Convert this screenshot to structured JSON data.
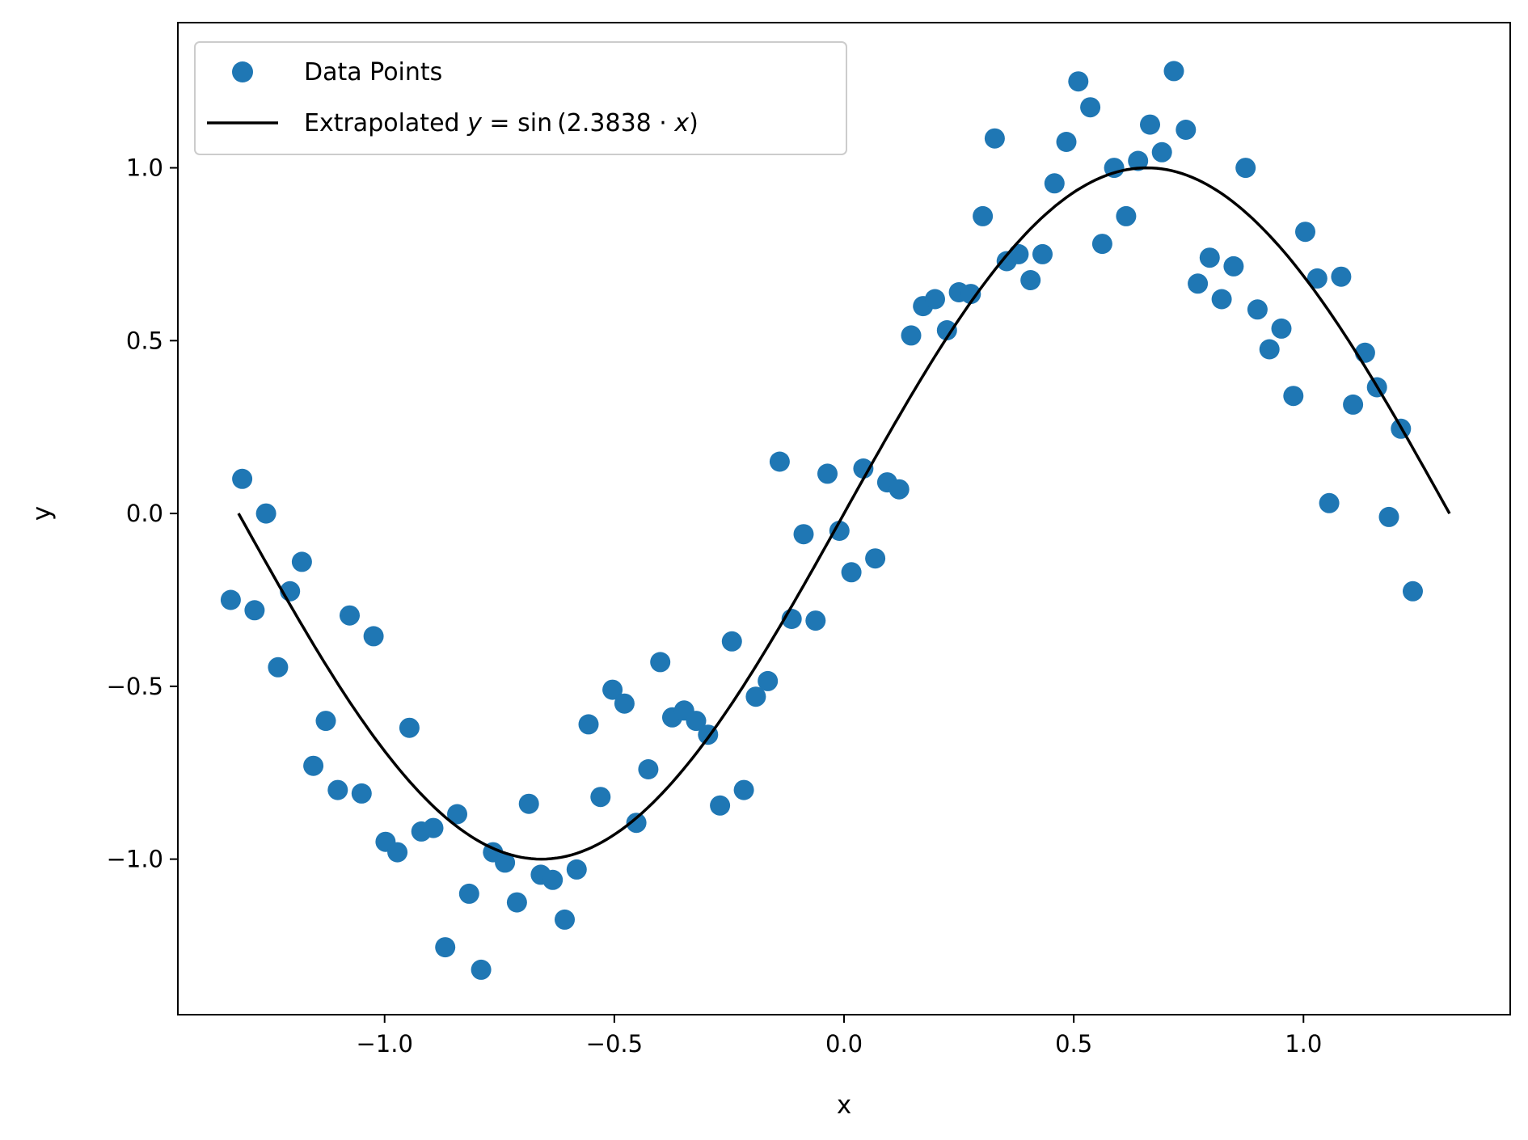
{
  "chart_data": {
    "type": "scatter",
    "xlabel": "x",
    "ylabel": "y",
    "xlim": [
      -1.45,
      1.45
    ],
    "ylim": [
      -1.45,
      1.42
    ],
    "xticks": [
      -1.0,
      -0.5,
      0.0,
      0.5,
      1.0
    ],
    "xtick_labels": [
      "−1.0",
      "−0.5",
      "0.0",
      "0.5",
      "1.0"
    ],
    "yticks": [
      -1.0,
      -0.5,
      0.0,
      0.5,
      1.0
    ],
    "ytick_labels": [
      "−1.0",
      "−0.5",
      "0.0",
      "0.5",
      "1.0"
    ],
    "grid": false,
    "legend_position": "top-left",
    "series": [
      {
        "name": "Data Points",
        "kind": "scatter",
        "color": "#1f77b4",
        "points": [
          [
            -1.335,
            -0.25
          ],
          [
            -1.31,
            0.1
          ],
          [
            -1.283,
            -0.28
          ],
          [
            -1.258,
            0.0
          ],
          [
            -1.232,
            -0.445
          ],
          [
            -1.206,
            -0.225
          ],
          [
            -1.18,
            -0.14
          ],
          [
            -1.155,
            -0.73
          ],
          [
            -1.128,
            -0.6
          ],
          [
            -1.102,
            -0.8
          ],
          [
            -1.076,
            -0.295
          ],
          [
            -1.05,
            -0.81
          ],
          [
            -1.024,
            -0.355
          ],
          [
            -0.998,
            -0.95
          ],
          [
            -0.972,
            -0.98
          ],
          [
            -0.946,
            -0.62
          ],
          [
            -0.92,
            -0.92
          ],
          [
            -0.894,
            -0.91
          ],
          [
            -0.868,
            -1.255
          ],
          [
            -0.842,
            -0.87
          ],
          [
            -0.816,
            -1.1
          ],
          [
            -0.79,
            -1.32
          ],
          [
            -0.764,
            -0.98
          ],
          [
            -0.738,
            -1.01
          ],
          [
            -0.712,
            -1.125
          ],
          [
            -0.686,
            -0.84
          ],
          [
            -0.66,
            -1.045
          ],
          [
            -0.634,
            -1.06
          ],
          [
            -0.608,
            -1.175
          ],
          [
            -0.582,
            -1.03
          ],
          [
            -0.556,
            -0.61
          ],
          [
            -0.53,
            -0.82
          ],
          [
            -0.504,
            -0.51
          ],
          [
            -0.478,
            -0.55
          ],
          [
            -0.452,
            -0.895
          ],
          [
            -0.426,
            -0.74
          ],
          [
            -0.4,
            -0.43
          ],
          [
            -0.374,
            -0.59
          ],
          [
            -0.348,
            -0.57
          ],
          [
            -0.322,
            -0.6
          ],
          [
            -0.296,
            -0.64
          ],
          [
            -0.27,
            -0.845
          ],
          [
            -0.244,
            -0.37
          ],
          [
            -0.218,
            -0.8
          ],
          [
            -0.192,
            -0.53
          ],
          [
            -0.166,
            -0.485
          ],
          [
            -0.14,
            0.15
          ],
          [
            -0.114,
            -0.305
          ],
          [
            -0.088,
            -0.06
          ],
          [
            -0.062,
            -0.31
          ],
          [
            -0.036,
            0.115
          ],
          [
            -0.01,
            -0.05
          ],
          [
            0.016,
            -0.17
          ],
          [
            0.042,
            0.13
          ],
          [
            0.068,
            -0.13
          ],
          [
            0.094,
            0.09
          ],
          [
            0.12,
            0.07
          ],
          [
            0.146,
            0.515
          ],
          [
            0.172,
            0.6
          ],
          [
            0.198,
            0.62
          ],
          [
            0.224,
            0.53
          ],
          [
            0.25,
            0.64
          ],
          [
            0.276,
            0.635
          ],
          [
            0.302,
            0.86
          ],
          [
            0.328,
            1.085
          ],
          [
            0.354,
            0.73
          ],
          [
            0.38,
            0.75
          ],
          [
            0.406,
            0.675
          ],
          [
            0.432,
            0.75
          ],
          [
            0.458,
            0.955
          ],
          [
            0.484,
            1.075
          ],
          [
            0.51,
            1.25
          ],
          [
            0.536,
            1.175
          ],
          [
            0.562,
            0.78
          ],
          [
            0.588,
            1.0
          ],
          [
            0.614,
            0.86
          ],
          [
            0.64,
            1.02
          ],
          [
            0.666,
            1.125
          ],
          [
            0.692,
            1.045
          ],
          [
            0.718,
            1.28
          ],
          [
            0.744,
            1.11
          ],
          [
            0.77,
            0.665
          ],
          [
            0.796,
            0.74
          ],
          [
            0.822,
            0.62
          ],
          [
            0.848,
            0.715
          ],
          [
            0.874,
            1.0
          ],
          [
            0.9,
            0.59
          ],
          [
            0.926,
            0.475
          ],
          [
            0.952,
            0.535
          ],
          [
            0.978,
            0.34
          ],
          [
            1.004,
            0.815
          ],
          [
            1.03,
            0.68
          ],
          [
            1.056,
            0.03
          ],
          [
            1.082,
            0.685
          ],
          [
            1.108,
            0.315
          ],
          [
            1.134,
            0.465
          ],
          [
            1.16,
            0.365
          ],
          [
            1.186,
            -0.01
          ],
          [
            1.212,
            0.245
          ],
          [
            1.238,
            -0.225
          ]
        ]
      },
      {
        "name": "Extrapolated",
        "kind": "line",
        "color": "#000000",
        "function": "sin",
        "coefficient": 2.3838,
        "x_range": [
          -1.318,
          1.318
        ]
      }
    ],
    "legend": {
      "scatter_label": "Data Points",
      "line_prefix": "Extrapolated",
      "line_math_lhs": "y",
      "line_math_eq": " = sin (2.3838 · ",
      "line_math_var": "x",
      "line_math_close": ")"
    }
  }
}
